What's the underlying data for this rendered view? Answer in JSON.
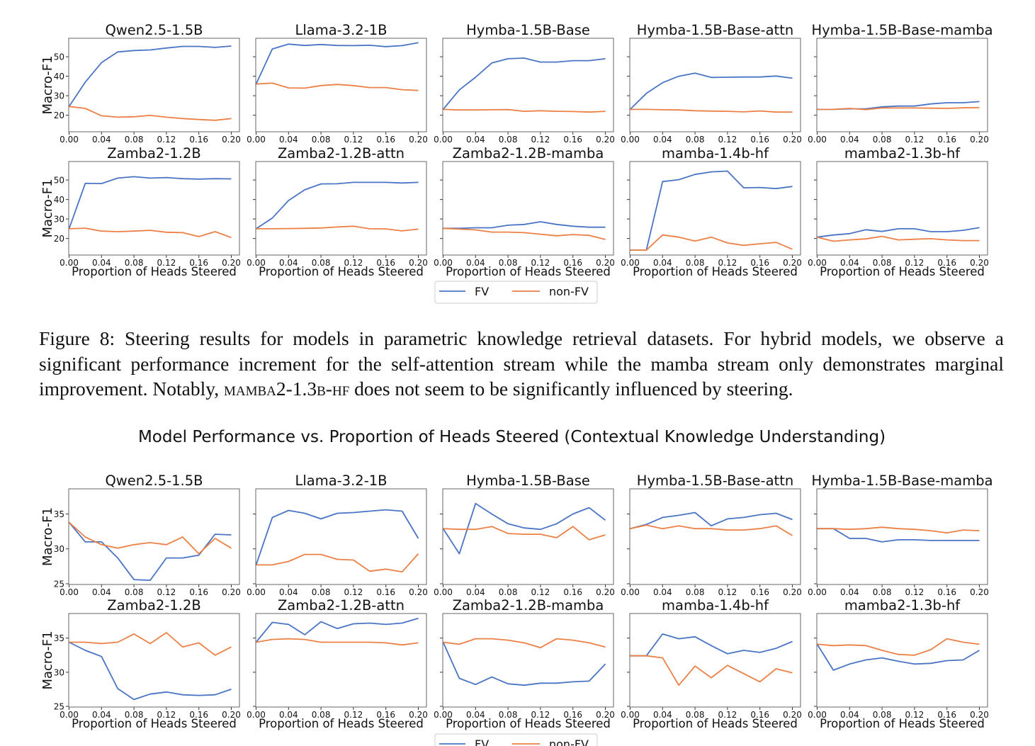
{
  "caption": {
    "prefix": "Figure 8: Steering results for models in parametric knowledge retrieval datasets. For hybrid models, we observe a significant performance increment for the self-attention stream while the mamba stream only demonstrates marginal improvement. Notably, ",
    "model_name": "mamba2-1.3b-hf",
    "suffix": " does not seem to be significantly influenced by steering."
  },
  "colors": {
    "fv": "#4a74c4",
    "nonfv": "#ec8046"
  },
  "chart_data": [
    {
      "type": "line",
      "title": "",
      "xlabel": "Proportion of Heads Steered",
      "ylabel": "Macro-F1",
      "x": [
        0.0,
        0.02,
        0.04,
        0.06,
        0.08,
        0.1,
        0.12,
        0.14,
        0.16,
        0.18,
        0.2
      ],
      "xticks": [
        "0.00",
        "0.04",
        "0.08",
        "0.12",
        "0.16",
        "0.20"
      ],
      "ylim": [
        11.5,
        59.5
      ],
      "yticks": [
        20,
        30,
        40,
        50
      ],
      "legend": {
        "placement": "bottom-center",
        "entries": [
          "FV",
          "non-FV"
        ]
      },
      "panels": [
        {
          "title": "Qwen2.5-1.5B",
          "fv": [
            24.5,
            37,
            47,
            52.5,
            53.2,
            53.5,
            54.5,
            55.3,
            55.3,
            54.8,
            55.5
          ],
          "nonfv": [
            24.5,
            23.5,
            19.7,
            19,
            19.2,
            19.9,
            19,
            18.3,
            17.8,
            17.4,
            18.3
          ]
        },
        {
          "title": "Llama-3.2-1B",
          "fv": [
            36,
            54,
            56.5,
            55.8,
            56.3,
            55.8,
            55.7,
            55.9,
            55.2,
            55.7,
            57.2
          ],
          "nonfv": [
            36,
            36.5,
            34,
            33.9,
            35.2,
            35.8,
            35.2,
            34.2,
            34.2,
            33.1,
            32.7
          ]
        },
        {
          "title": "Hymba-1.5B-Base",
          "fv": [
            23,
            33,
            39.5,
            46.8,
            49,
            49.3,
            47.3,
            47.3,
            48,
            48,
            49
          ],
          "nonfv": [
            23,
            22.7,
            22.7,
            22.8,
            22.9,
            22,
            22.3,
            22,
            21.9,
            21.6,
            22
          ]
        },
        {
          "title": "Hymba-1.5B-Base-attn",
          "fv": [
            23,
            31.2,
            36.7,
            40,
            41.6,
            39.4,
            39.5,
            39.6,
            39.6,
            40.1,
            39
          ],
          "nonfv": [
            23,
            23,
            22.8,
            22.7,
            22.3,
            22.1,
            22,
            21.7,
            22.2,
            21.6,
            21.6
          ]
        },
        {
          "title": "Hymba-1.5B-Base-mamba",
          "fv": [
            23,
            23,
            23.3,
            23.3,
            24.3,
            24.7,
            24.7,
            25.8,
            26.4,
            26.4,
            27
          ],
          "nonfv": [
            23,
            23,
            23.5,
            22.9,
            23.7,
            23.7,
            23.7,
            23.6,
            23.5,
            23.8,
            23.9
          ]
        },
        {
          "title": "Zamba2-1.2B",
          "fv": [
            25,
            48.3,
            48.2,
            51,
            51.7,
            51,
            51.3,
            50.7,
            50.5,
            50.7,
            50.6
          ],
          "nonfv": [
            25,
            25.3,
            23.8,
            23.5,
            23.8,
            24.2,
            23.2,
            23,
            21,
            23.5,
            20.5
          ]
        },
        {
          "title": "Zamba2-1.2B-attn",
          "fv": [
            25,
            30.5,
            39.5,
            45,
            48,
            48.1,
            48.8,
            48.8,
            48.8,
            48.5,
            48.8
          ],
          "nonfv": [
            25,
            25,
            25.1,
            25.2,
            25.4,
            25.9,
            26.3,
            25,
            24.9,
            23.9,
            24.8
          ]
        },
        {
          "title": "Zamba2-1.2B-mamba",
          "fv": [
            25.2,
            25.2,
            25.5,
            25.5,
            26.8,
            27.2,
            28.6,
            27.2,
            26.3,
            25.8,
            25.8
          ],
          "nonfv": [
            25.2,
            24.8,
            24.4,
            23.3,
            23.3,
            23,
            22.2,
            21.4,
            22,
            21.6,
            19.5
          ]
        },
        {
          "title": "mamba-1.4b-hf",
          "fv": [
            14,
            14,
            49.2,
            50.2,
            52.9,
            54.2,
            54.6,
            46,
            46.2,
            45.6,
            46.7
          ],
          "nonfv": [
            14,
            14,
            21.8,
            20.7,
            18.7,
            20.7,
            17.7,
            16.5,
            17.3,
            18,
            14.5
          ]
        },
        {
          "title": "mamba2-1.3b-hf",
          "fv": [
            20.7,
            21.8,
            22.5,
            24.5,
            23.6,
            25,
            25,
            23.5,
            23.5,
            24.2,
            25.6
          ],
          "nonfv": [
            20.7,
            18.6,
            19.3,
            19.8,
            21.1,
            19.3,
            19.6,
            19.9,
            19.3,
            18.9,
            18.9
          ]
        }
      ]
    },
    {
      "type": "line",
      "title": "Model Performance vs. Proportion of Heads Steered (Contextual Knowledge Understanding)",
      "xlabel": "Proportion of Heads Steered",
      "ylabel": "Macro-F1",
      "x": [
        0.0,
        0.02,
        0.04,
        0.06,
        0.08,
        0.1,
        0.12,
        0.14,
        0.16,
        0.18,
        0.2
      ],
      "xticks": [
        "0.00",
        "0.04",
        "0.08",
        "0.12",
        "0.16",
        "0.20"
      ],
      "ylim": [
        24.9,
        38.6
      ],
      "yticks": [
        25,
        30,
        35
      ],
      "legend": {
        "placement": "bottom-center",
        "entries": [
          "FV",
          "non-FV"
        ]
      },
      "panels": [
        {
          "title": "Qwen2.5-1.5B",
          "fv": [
            33.8,
            31,
            31,
            28.7,
            25.6,
            25.5,
            28.7,
            28.7,
            29.1,
            32.1,
            32
          ],
          "nonfv": [
            33.8,
            31.7,
            30.6,
            30.1,
            30.6,
            30.9,
            30.6,
            31.7,
            29.3,
            31.5,
            30.1
          ]
        },
        {
          "title": "Llama-3.2-1B",
          "fv": [
            27.7,
            34.5,
            35.5,
            35.1,
            34.3,
            35.1,
            35.2,
            35.4,
            35.6,
            35.4,
            31.5
          ],
          "nonfv": [
            27.7,
            27.7,
            28.2,
            29.2,
            29.2,
            28.5,
            28.4,
            26.8,
            27.1,
            26.7,
            29.3
          ]
        },
        {
          "title": "Hymba-1.5B-Base",
          "fv": [
            32.9,
            29.3,
            36.5,
            35,
            33.6,
            33,
            32.8,
            33.6,
            35,
            35.9,
            34.1
          ],
          "nonfv": [
            32.9,
            32.8,
            32.8,
            33.2,
            32.2,
            32.1,
            32.1,
            31.6,
            33.2,
            31.3,
            32
          ]
        },
        {
          "title": "Hymba-1.5B-Base-attn",
          "fv": [
            32.9,
            33.5,
            34.5,
            34.8,
            35.2,
            33.3,
            34.3,
            34.5,
            34.9,
            35.1,
            34.2
          ],
          "nonfv": [
            32.9,
            33.4,
            32.9,
            33.3,
            32.9,
            32.9,
            32.7,
            32.7,
            32.9,
            33.3,
            31.9
          ]
        },
        {
          "title": "Hymba-1.5B-Base-mamba",
          "fv": [
            32.9,
            32.9,
            31.5,
            31.5,
            31,
            31.3,
            31.3,
            31.2,
            31.2,
            31.2,
            31.2
          ],
          "nonfv": [
            32.9,
            32.9,
            32.8,
            32.9,
            33.1,
            32.9,
            32.8,
            32.6,
            32.3,
            32.7,
            32.6
          ]
        },
        {
          "title": "Zamba2-1.2B",
          "fv": [
            34.4,
            33.2,
            32.3,
            27.6,
            26,
            26.8,
            27.1,
            26.7,
            26.6,
            26.7,
            27.5
          ],
          "nonfv": [
            34.4,
            34.4,
            34.2,
            34.4,
            35.6,
            34.2,
            35.8,
            33.7,
            34.3,
            32.5,
            33.7
          ]
        },
        {
          "title": "Zamba2-1.2B-attn",
          "fv": [
            34.4,
            37.3,
            37,
            35.5,
            37.4,
            36.4,
            37.1,
            37.2,
            37,
            37.2,
            37.9
          ],
          "nonfv": [
            34.4,
            34.8,
            34.9,
            34.8,
            34.4,
            34.4,
            34.4,
            34.4,
            34.3,
            34,
            34.3
          ]
        },
        {
          "title": "Zamba2-1.2B-mamba",
          "fv": [
            34.4,
            29.1,
            28.2,
            29.3,
            28.3,
            28.1,
            28.4,
            28.4,
            28.6,
            28.7,
            31.2
          ],
          "nonfv": [
            34.4,
            34.1,
            34.9,
            34.9,
            34.7,
            34.3,
            33.6,
            34.9,
            34.7,
            34.3,
            33.7
          ]
        },
        {
          "title": "mamba-1.4b-hf",
          "fv": [
            32.4,
            32.4,
            35.6,
            34.9,
            35.2,
            33.9,
            32.7,
            33.2,
            32.9,
            33.5,
            34.5
          ],
          "nonfv": [
            32.4,
            32.4,
            32.1,
            28.1,
            30.9,
            29.2,
            31,
            29.8,
            28.6,
            30.5,
            29.9
          ]
        },
        {
          "title": "mamba2-1.3b-hf",
          "fv": [
            34.1,
            30.3,
            31.2,
            31.8,
            32.1,
            31.6,
            31.2,
            31.3,
            31.7,
            31.8,
            33.2
          ],
          "nonfv": [
            34.1,
            33.9,
            34,
            33.9,
            33.2,
            32.6,
            32.5,
            33.3,
            34.9,
            34.4,
            34.1
          ]
        }
      ]
    }
  ]
}
